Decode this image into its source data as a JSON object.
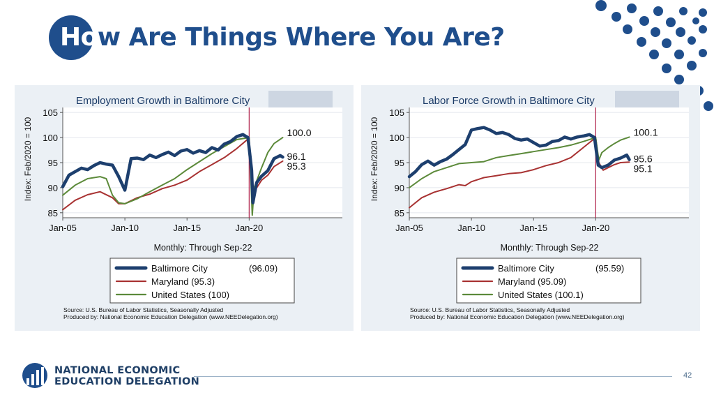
{
  "slide": {
    "title_highlight": "Ho",
    "title_rest": "w Are Things Where You Are?",
    "page_number": "42",
    "logo_line1": "NATIONAL ECONOMIC",
    "logo_line2": "EDUCATION DELEGATION",
    "accent_color": "#1f4e8c"
  },
  "chart_data": [
    {
      "type": "line",
      "title": "Employment Growth in Baltimore City",
      "ylabel": "Index: Feb/2020 = 100",
      "xlabel": "Monthly: Through Sep-22",
      "x_ticks": [
        "Jan-05",
        "Jan-10",
        "Jan-15",
        "Jan-20"
      ],
      "y_ticks": [
        85,
        90,
        95,
        100,
        105
      ],
      "ylim": [
        84,
        106
      ],
      "xlim": [
        2005.0,
        2027.5
      ],
      "vline_x": 2020.0,
      "end_labels": [
        "100.0",
        "96.1",
        "95.3"
      ],
      "source_line1": "Source: U.S. Bureau of Labor Statistics, Seasonally Adjusted",
      "source_line2": "Produced by: National Economic Education Delegation (www.NEEDelegation.org)",
      "legend_position": "bottom",
      "series": [
        {
          "name": "Baltimore City",
          "legend": "Baltimore City",
          "legend_value": "(96.09)",
          "color": "#1d3f6e",
          "width": 4.5,
          "x": [
            2005.0,
            2005.5,
            2006.0,
            2006.5,
            2007.0,
            2007.5,
            2008.0,
            2008.5,
            2009.0,
            2009.5,
            2010.0,
            2010.5,
            2011.0,
            2011.5,
            2012.0,
            2012.5,
            2013.0,
            2013.5,
            2014.0,
            2014.5,
            2015.0,
            2015.5,
            2016.0,
            2016.5,
            2017.0,
            2017.5,
            2018.0,
            2018.5,
            2019.0,
            2019.5,
            2019.9,
            2020.2,
            2020.3,
            2020.6,
            2021.0,
            2021.5,
            2022.0,
            2022.5,
            2022.7
          ],
          "y": [
            90.2,
            92.5,
            93.2,
            93.9,
            93.6,
            94.4,
            95.0,
            94.7,
            94.5,
            92.2,
            89.5,
            95.8,
            95.9,
            95.6,
            96.5,
            96.0,
            96.6,
            97.1,
            96.4,
            97.3,
            97.6,
            96.9,
            97.4,
            97.0,
            98.0,
            97.5,
            98.7,
            99.2,
            100.2,
            100.6,
            100.0,
            93.5,
            87.0,
            91.0,
            92.3,
            93.4,
            95.8,
            96.4,
            96.1
          ]
        },
        {
          "name": "Maryland",
          "legend": "Maryland (95.3)",
          "legend_value": "",
          "color": "#a83232",
          "width": 2,
          "x": [
            2005.0,
            2006.0,
            2007.0,
            2008.0,
            2009.0,
            2009.5,
            2010.0,
            2011.0,
            2012.0,
            2013.0,
            2014.0,
            2015.0,
            2016.0,
            2017.0,
            2018.0,
            2019.0,
            2020.0,
            2020.25,
            2020.4,
            2021.0,
            2021.5,
            2022.0,
            2022.7
          ],
          "y": [
            85.6,
            87.5,
            88.6,
            89.2,
            88.0,
            86.8,
            86.8,
            88.0,
            88.7,
            89.8,
            90.5,
            91.5,
            93.2,
            94.6,
            96.0,
            97.8,
            99.9,
            88.0,
            89.2,
            91.5,
            92.5,
            94.2,
            95.3
          ]
        },
        {
          "name": "United States",
          "legend": "United States (100)",
          "legend_value": "",
          "color": "#5c8a3a",
          "width": 2,
          "x": [
            2005.0,
            2006.0,
            2007.0,
            2008.0,
            2008.5,
            2009.0,
            2009.5,
            2010.0,
            2011.0,
            2012.0,
            2013.0,
            2014.0,
            2015.0,
            2016.0,
            2017.0,
            2018.0,
            2019.0,
            2020.0,
            2020.25,
            2020.4,
            2021.0,
            2021.5,
            2022.0,
            2022.7
          ],
          "y": [
            88.5,
            90.5,
            91.8,
            92.2,
            91.8,
            88.5,
            87.0,
            86.8,
            87.8,
            89.2,
            90.5,
            91.8,
            93.6,
            95.2,
            96.8,
            98.2,
            99.6,
            100.0,
            84.5,
            90.0,
            94.0,
            97.0,
            98.8,
            100.0
          ]
        }
      ]
    },
    {
      "type": "line",
      "title": "Labor Force Growth in Baltimore City",
      "ylabel": "Index: Feb/2020 = 100",
      "xlabel": "Monthly: Through Sep-22",
      "x_ticks": [
        "Jan-05",
        "Jan-10",
        "Jan-15",
        "Jan-20"
      ],
      "y_ticks": [
        85,
        90,
        95,
        100,
        105
      ],
      "ylim": [
        84,
        106
      ],
      "xlim": [
        2005.0,
        2027.5
      ],
      "vline_x": 2020.0,
      "end_labels": [
        "100.1",
        "95.6",
        "95.1"
      ],
      "source_line1": "Source: U.S. Bureau of Labor Statistics, Seasonally Adjusted",
      "source_line2": "Produced by: National Economic Education Delegation (www.NEEDelegation.org)",
      "legend_position": "bottom",
      "series": [
        {
          "name": "Baltimore City",
          "legend": "Baltimore City",
          "legend_value": "(95.59)",
          "color": "#1d3f6e",
          "width": 4.5,
          "x": [
            2005.0,
            2005.5,
            2006.0,
            2006.5,
            2007.0,
            2007.5,
            2008.0,
            2008.5,
            2009.0,
            2009.5,
            2010.0,
            2010.5,
            2011.0,
            2011.5,
            2012.0,
            2012.5,
            2013.0,
            2013.5,
            2014.0,
            2014.5,
            2015.0,
            2015.5,
            2016.0,
            2016.5,
            2017.0,
            2017.5,
            2018.0,
            2018.5,
            2019.0,
            2019.5,
            2019.9,
            2020.2,
            2020.5,
            2021.0,
            2021.5,
            2022.0,
            2022.5,
            2022.7
          ],
          "y": [
            92.2,
            93.2,
            94.6,
            95.3,
            94.5,
            95.2,
            95.7,
            96.6,
            97.6,
            98.6,
            101.5,
            101.8,
            102.0,
            101.5,
            100.8,
            101.0,
            100.6,
            99.8,
            99.5,
            99.7,
            99.0,
            98.3,
            98.5,
            99.2,
            99.4,
            100.1,
            99.7,
            100.1,
            100.3,
            100.6,
            100.0,
            94.5,
            94.0,
            94.5,
            95.5,
            95.9,
            96.5,
            95.6
          ]
        },
        {
          "name": "Maryland",
          "legend": "Maryland (95.09)",
          "legend_value": "",
          "color": "#a83232",
          "width": 2,
          "x": [
            2005.0,
            2006.0,
            2007.0,
            2008.0,
            2009.0,
            2009.5,
            2010.0,
            2011.0,
            2012.0,
            2013.0,
            2014.0,
            2015.0,
            2016.0,
            2017.0,
            2018.0,
            2019.0,
            2020.0,
            2020.25,
            2020.6,
            2021.0,
            2021.5,
            2022.0,
            2022.7
          ],
          "y": [
            86.0,
            88.0,
            89.1,
            89.8,
            90.6,
            90.4,
            91.2,
            92.0,
            92.4,
            92.8,
            93.0,
            93.6,
            94.4,
            95.0,
            96.0,
            98.0,
            100.0,
            95.0,
            93.5,
            94.0,
            94.6,
            95.0,
            95.1
          ]
        },
        {
          "name": "United States",
          "legend": "United States (100.1)",
          "legend_value": "",
          "color": "#5c8a3a",
          "width": 2,
          "x": [
            2005.0,
            2006.0,
            2007.0,
            2008.0,
            2009.0,
            2010.0,
            2011.0,
            2012.0,
            2013.0,
            2014.0,
            2015.0,
            2016.0,
            2017.0,
            2018.0,
            2019.0,
            2020.0,
            2020.25,
            2020.5,
            2021.0,
            2021.5,
            2022.0,
            2022.7
          ],
          "y": [
            90.0,
            91.8,
            93.2,
            94.0,
            94.8,
            95.0,
            95.2,
            96.0,
            96.4,
            96.8,
            97.2,
            97.6,
            98.0,
            98.5,
            99.2,
            100.0,
            95.5,
            97.0,
            98.0,
            98.8,
            99.5,
            100.1
          ]
        }
      ]
    }
  ]
}
